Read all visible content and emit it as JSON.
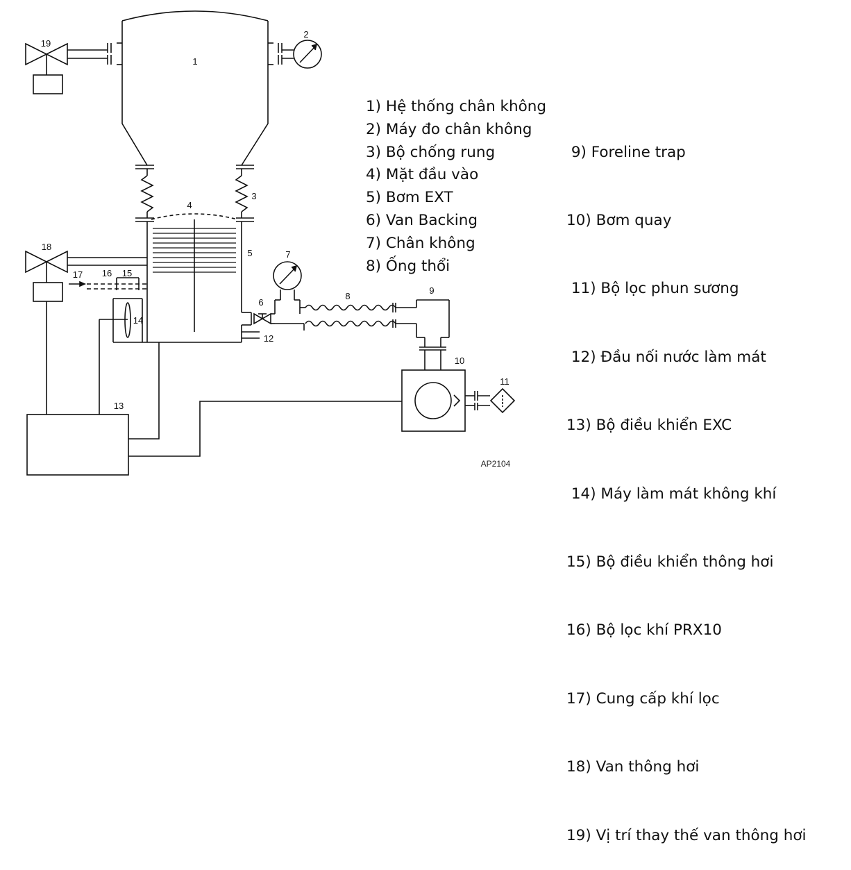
{
  "component_numbers": [
    "1",
    "2",
    "3",
    "4",
    "5",
    "6",
    "7",
    "8",
    "9",
    "10",
    "11",
    "12",
    "13",
    "14",
    "15",
    "16",
    "17",
    "18",
    "19"
  ],
  "figure_code": "AP2104",
  "legend_left": [
    "1) Hệ thống chân không",
    "2) Máy đo chân không",
    "3) Bộ chống rung",
    "4) Mặt đầu vào",
    "5) Bơm EXT",
    "6) Van Backing",
    "7) Chân không",
    "8) Ống thổi"
  ],
  "legend_right": [
    " 9) Foreline trap",
    "10) Bơm quay",
    " 11) Bộ lọc phun sương",
    " 12) Đầu nối nước làm mát",
    "13) Bộ điều khiển EXC",
    " 14) Máy làm mát không khí",
    "15) Bộ điều khiển thông hơi",
    "16) Bộ lọc khí PRX10",
    "17) Cung cấp khí lọc",
    "18) Van thông hơi",
    "19) Vị trí thay thế van thông hơi"
  ]
}
